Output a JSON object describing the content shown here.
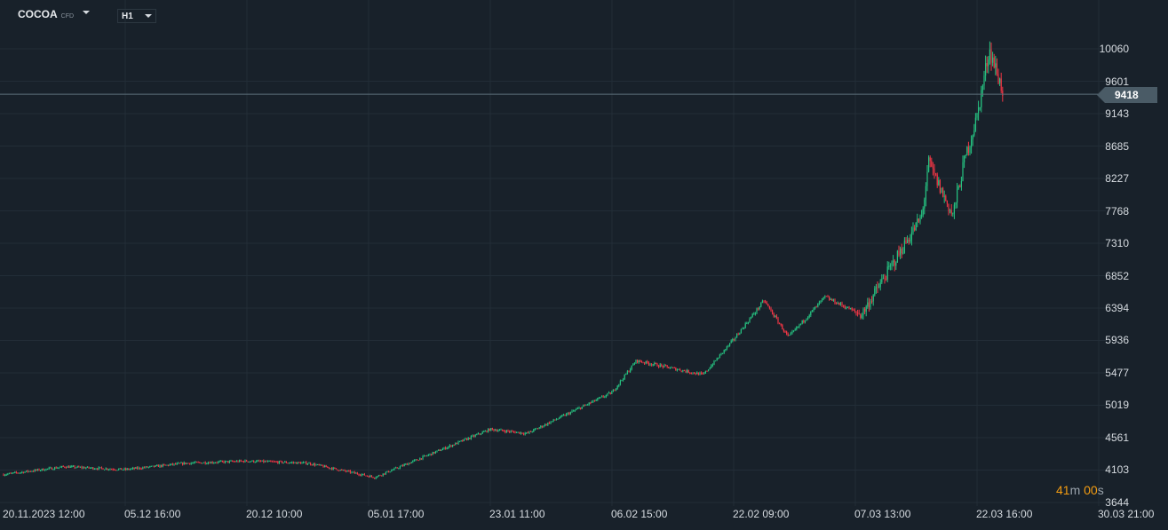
{
  "header": {
    "symbol": "COCOA",
    "symbol_type": "CFD",
    "timeframe": "H1"
  },
  "price_axis": [
    "10060",
    "9601",
    "9143",
    "8685",
    "8227",
    "7768",
    "7310",
    "6852",
    "6394",
    "5936",
    "5477",
    "5019",
    "4561",
    "4103",
    "3644"
  ],
  "time_axis": [
    "20.11.2023  12:00",
    "05.12  16:00",
    "20.12  10:00",
    "05.01  17:00",
    "23.01  11:00",
    "06.02  15:00",
    "22.02  09:00",
    "07.03  13:00",
    "22.03  16:00",
    "30.03  21:00"
  ],
  "current_price": "9418",
  "countdown": {
    "minutes": "41",
    "m": "m",
    "seconds": "00",
    "s": "s"
  },
  "colors": {
    "up": "#26c281",
    "down": "#f23645",
    "background": "#18212a",
    "grid": "#222d37",
    "price_line": "#5d6f7a"
  },
  "chart_data": {
    "type": "candlestick",
    "title": "COCOA CFD H1",
    "ylim": [
      3644,
      10060
    ],
    "x_unit": "time-axis tick index (0 = 20.11.2023 12:00)",
    "path": [
      [
        0,
        4040
      ],
      [
        0.5,
        4150
      ],
      [
        1,
        4110
      ],
      [
        1.5,
        4200
      ],
      [
        2,
        4230
      ],
      [
        2.5,
        4200
      ],
      [
        3.05,
        4000
      ],
      [
        4,
        4680
      ],
      [
        4.3,
        4620
      ],
      [
        5,
        5200
      ],
      [
        5.2,
        5650
      ],
      [
        5.75,
        5450
      ],
      [
        6,
        5950
      ],
      [
        6.25,
        6500
      ],
      [
        6.45,
        5980
      ],
      [
        6.75,
        6550
      ],
      [
        7.05,
        6300
      ],
      [
        7.3,
        7000
      ],
      [
        7.55,
        7700
      ],
      [
        7.6,
        8450
      ],
      [
        7.8,
        7700
      ],
      [
        7.9,
        8500
      ],
      [
        8.0,
        9100
      ],
      [
        8.1,
        10060
      ],
      [
        8.22,
        9418
      ]
    ]
  }
}
